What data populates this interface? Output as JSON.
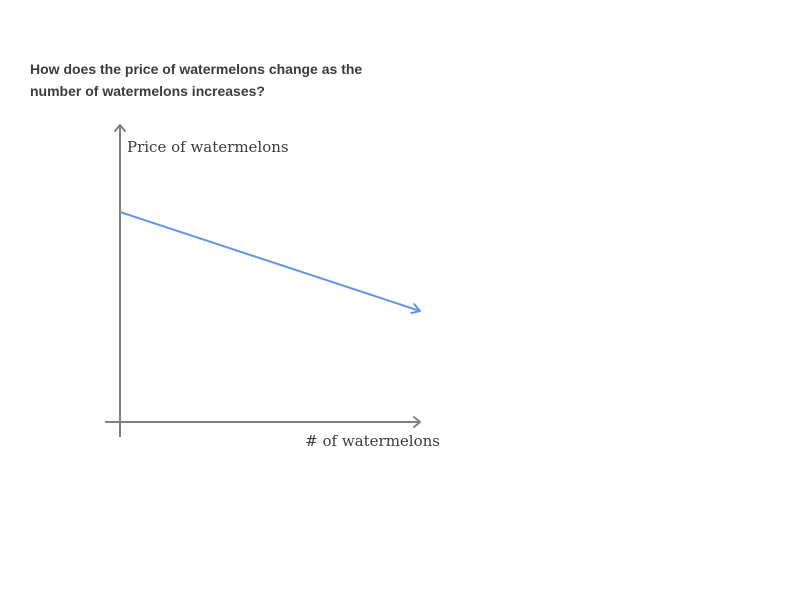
{
  "question": {
    "line1": "How does the price of watermelons change as the",
    "line2": "number of watermelons increases?"
  },
  "chart_data": {
    "type": "line",
    "title": "",
    "xlabel": "# of watermelons",
    "ylabel": "Price of watermelons",
    "xlim": [
      0,
      10
    ],
    "ylim": [
      0,
      10
    ],
    "grid": false,
    "legend": "none",
    "series": [
      {
        "x": [
          0,
          10
        ],
        "y": [
          7,
          3.7
        ],
        "arrow_end": true
      }
    ]
  },
  "colors": {
    "axis": "#808080",
    "series": "#6495e3",
    "text": "#3b3b3b"
  }
}
